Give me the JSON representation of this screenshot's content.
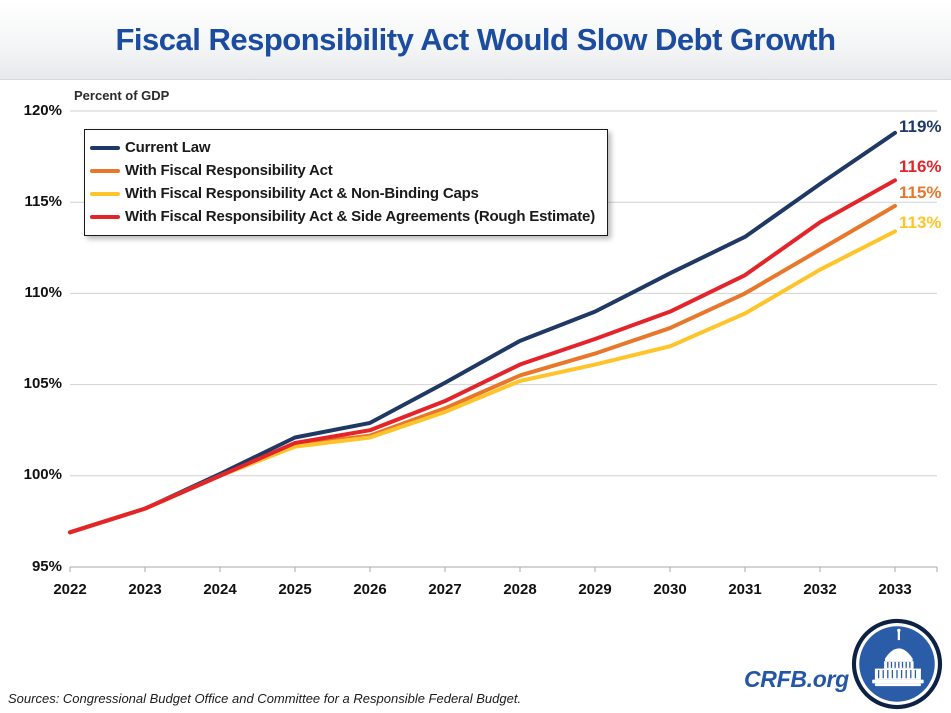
{
  "title": "Fiscal Responsibility Act Would Slow Debt Growth",
  "colors": {
    "title_blue": "#1B4CA0",
    "site_blue": "#2456A8",
    "navy": "#1F3864",
    "orange": "#E8772B",
    "yellow": "#FFC429",
    "red": "#E3242B"
  },
  "chart_data": {
    "type": "line",
    "title": "Fiscal Responsibility Act Would Slow Debt Growth",
    "ylabel": "Percent of GDP",
    "xlabel": "",
    "ylim": [
      95,
      120
    ],
    "grid": "horizontal",
    "grid_color": "#D2D2D2",
    "axis_color": "#A8A8A8",
    "legend_position": "top-left boxed",
    "x": [
      2022,
      2023,
      2024,
      2025,
      2026,
      2027,
      2028,
      2029,
      2030,
      2031,
      2032,
      2033
    ],
    "y_ticks": [
      "120%",
      "115%",
      "110%",
      "105%",
      "100%",
      "95%"
    ],
    "y_tick_values": [
      120,
      115,
      110,
      105,
      100,
      95
    ],
    "series": [
      {
        "name": "Current Law",
        "color": "#1F3864",
        "end_label": "119%",
        "values": [
          96.9,
          98.2,
          100.1,
          102.1,
          102.9,
          105.1,
          107.4,
          109.0,
          111.1,
          113.1,
          116.0,
          118.8
        ]
      },
      {
        "name": "With Fiscal Responsibility Act",
        "color": "#E8772B",
        "end_label": "115%",
        "values": [
          96.9,
          98.2,
          100.0,
          101.7,
          102.2,
          103.7,
          105.5,
          106.7,
          108.1,
          110.0,
          112.4,
          114.8
        ]
      },
      {
        "name": "With Fiscal Responsibility Act & Non-Binding Caps",
        "color": "#FFC429",
        "end_label": "113%",
        "values": [
          96.9,
          98.2,
          100.0,
          101.6,
          102.1,
          103.5,
          105.2,
          106.1,
          107.1,
          108.9,
          111.3,
          113.4
        ]
      },
      {
        "name": "With Fiscal Responsibility Act & Side Agreements (Rough Estimate)",
        "color": "#E3242B",
        "end_label": "116%",
        "values": [
          96.9,
          98.2,
          100.0,
          101.8,
          102.5,
          104.1,
          106.1,
          107.5,
          109.0,
          111.0,
          113.9,
          116.2
        ]
      }
    ]
  },
  "footer": {
    "sources": "Sources: Congressional Budget Office and Committee for a Responsible Federal Budget.",
    "site": "CRFB.org",
    "logo_icon": "capitol-dome"
  }
}
